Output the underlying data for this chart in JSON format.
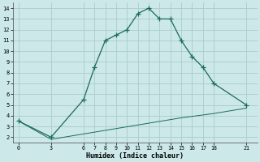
{
  "xlabel": "Humidex (Indice chaleur)",
  "bg_color": "#cce8e8",
  "grid_color": "#aacccc",
  "line_color": "#1a6b5a",
  "upper_x": [
    0,
    3,
    6,
    7,
    8,
    9,
    10,
    11,
    12,
    13,
    14,
    15,
    16,
    17,
    18,
    21
  ],
  "upper_y": [
    3.5,
    2.0,
    5.5,
    8.5,
    11.0,
    11.5,
    12.0,
    13.5,
    14.0,
    13.0,
    13.0,
    11.0,
    9.5,
    8.5,
    7.0,
    5.0
  ],
  "lower_x": [
    0,
    3,
    6,
    9,
    12,
    15,
    18,
    21
  ],
  "lower_y": [
    3.5,
    1.8,
    2.3,
    2.8,
    3.3,
    3.8,
    4.2,
    4.7
  ],
  "xlim": [
    -0.5,
    22
  ],
  "ylim": [
    1.5,
    14.5
  ],
  "xticks": [
    0,
    3,
    6,
    7,
    8,
    9,
    10,
    11,
    12,
    13,
    14,
    15,
    16,
    17,
    18,
    21
  ],
  "yticks": [
    2,
    3,
    4,
    5,
    6,
    7,
    8,
    9,
    10,
    11,
    12,
    13,
    14
  ]
}
